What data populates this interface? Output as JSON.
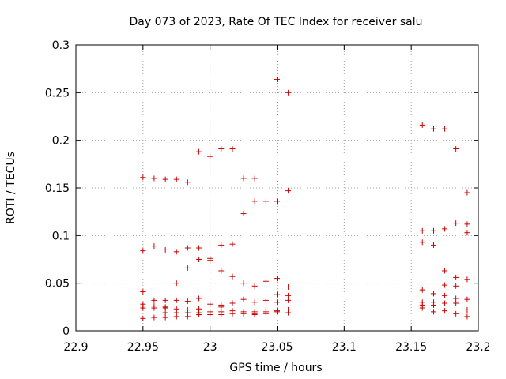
{
  "chart_data": {
    "type": "scatter",
    "title": "Day 073 of 2023, Rate Of TEC Index for receiver salu",
    "xlabel": "GPS time / hours",
    "ylabel": "ROTI / TECUs",
    "xlim": [
      22.9,
      23.2
    ],
    "ylim": [
      0,
      0.3
    ],
    "x_ticks": [
      22.9,
      22.95,
      23.0,
      23.05,
      23.1,
      23.15,
      23.2
    ],
    "x_tick_labels": [
      "22.9",
      "22.95",
      "23",
      "23.05",
      "23.1",
      "23.15",
      "23.2"
    ],
    "y_ticks": [
      0,
      0.05,
      0.1,
      0.15,
      0.2,
      0.25,
      0.3
    ],
    "y_tick_labels": [
      "0",
      "0.05",
      "0.1",
      "0.15",
      "0.2",
      "0.25",
      "0.3"
    ],
    "grid": true,
    "marker": "plus",
    "marker_color": "#cc0000",
    "points": [
      [
        22.95,
        0.161
      ],
      [
        22.95,
        0.084
      ],
      [
        22.95,
        0.041
      ],
      [
        22.95,
        0.028
      ],
      [
        22.95,
        0.026
      ],
      [
        22.95,
        0.024
      ],
      [
        22.95,
        0.013
      ],
      [
        22.9583,
        0.16
      ],
      [
        22.9583,
        0.089
      ],
      [
        22.9583,
        0.032
      ],
      [
        22.9583,
        0.026
      ],
      [
        22.9583,
        0.024
      ],
      [
        22.9583,
        0.014
      ],
      [
        22.9667,
        0.159
      ],
      [
        22.9667,
        0.085
      ],
      [
        22.9667,
        0.032
      ],
      [
        22.9667,
        0.025
      ],
      [
        22.9667,
        0.024
      ],
      [
        22.9667,
        0.019
      ],
      [
        22.9667,
        0.014
      ],
      [
        22.975,
        0.159
      ],
      [
        22.975,
        0.083
      ],
      [
        22.975,
        0.05
      ],
      [
        22.975,
        0.032
      ],
      [
        22.975,
        0.023
      ],
      [
        22.975,
        0.019
      ],
      [
        22.975,
        0.015
      ],
      [
        22.9833,
        0.156
      ],
      [
        22.9833,
        0.087
      ],
      [
        22.9833,
        0.066
      ],
      [
        22.9833,
        0.031
      ],
      [
        22.9833,
        0.022
      ],
      [
        22.9833,
        0.019
      ],
      [
        22.9833,
        0.015
      ],
      [
        22.9917,
        0.188
      ],
      [
        22.9917,
        0.087
      ],
      [
        22.9917,
        0.075
      ],
      [
        22.9917,
        0.034
      ],
      [
        22.9917,
        0.023
      ],
      [
        22.9917,
        0.019
      ],
      [
        22.9917,
        0.017
      ],
      [
        23.0,
        0.183
      ],
      [
        23.0,
        0.076
      ],
      [
        23.0,
        0.074
      ],
      [
        23.0,
        0.028
      ],
      [
        23.0,
        0.02
      ],
      [
        23.0,
        0.017
      ],
      [
        23.0083,
        0.191
      ],
      [
        23.0083,
        0.09
      ],
      [
        23.0083,
        0.063
      ],
      [
        23.0083,
        0.027
      ],
      [
        23.0083,
        0.025
      ],
      [
        23.0083,
        0.02
      ],
      [
        23.0083,
        0.017
      ],
      [
        23.0167,
        0.191
      ],
      [
        23.0167,
        0.091
      ],
      [
        23.0167,
        0.057
      ],
      [
        23.0167,
        0.029
      ],
      [
        23.0167,
        0.021
      ],
      [
        23.0167,
        0.018
      ],
      [
        23.025,
        0.16
      ],
      [
        23.025,
        0.123
      ],
      [
        23.025,
        0.05
      ],
      [
        23.025,
        0.033
      ],
      [
        23.025,
        0.02
      ],
      [
        23.025,
        0.018
      ],
      [
        23.0333,
        0.16
      ],
      [
        23.0333,
        0.136
      ],
      [
        23.0333,
        0.047
      ],
      [
        23.0333,
        0.03
      ],
      [
        23.0333,
        0.02
      ],
      [
        23.0333,
        0.018
      ],
      [
        23.0333,
        0.017
      ],
      [
        23.0417,
        0.136
      ],
      [
        23.0417,
        0.052
      ],
      [
        23.0417,
        0.032
      ],
      [
        23.0417,
        0.022
      ],
      [
        23.0417,
        0.02
      ],
      [
        23.0417,
        0.018
      ],
      [
        23.05,
        0.264
      ],
      [
        23.05,
        0.136
      ],
      [
        23.05,
        0.055
      ],
      [
        23.05,
        0.038
      ],
      [
        23.05,
        0.03
      ],
      [
        23.05,
        0.021
      ],
      [
        23.05,
        0.02
      ],
      [
        23.0583,
        0.25
      ],
      [
        23.0583,
        0.147
      ],
      [
        23.0583,
        0.046
      ],
      [
        23.0583,
        0.037
      ],
      [
        23.0583,
        0.032
      ],
      [
        23.0583,
        0.022
      ],
      [
        23.0583,
        0.019
      ],
      [
        23.1583,
        0.216
      ],
      [
        23.1583,
        0.105
      ],
      [
        23.1583,
        0.093
      ],
      [
        23.1583,
        0.043
      ],
      [
        23.1583,
        0.03
      ],
      [
        23.1583,
        0.027
      ],
      [
        23.1583,
        0.024
      ],
      [
        23.1667,
        0.212
      ],
      [
        23.1667,
        0.105
      ],
      [
        23.1667,
        0.09
      ],
      [
        23.1667,
        0.039
      ],
      [
        23.1667,
        0.03
      ],
      [
        23.1667,
        0.027
      ],
      [
        23.1667,
        0.02
      ],
      [
        23.175,
        0.212
      ],
      [
        23.175,
        0.107
      ],
      [
        23.175,
        0.063
      ],
      [
        23.175,
        0.048
      ],
      [
        23.175,
        0.037
      ],
      [
        23.175,
        0.029
      ],
      [
        23.175,
        0.021
      ],
      [
        23.1833,
        0.191
      ],
      [
        23.1833,
        0.113
      ],
      [
        23.1833,
        0.056
      ],
      [
        23.1833,
        0.047
      ],
      [
        23.1833,
        0.034
      ],
      [
        23.1833,
        0.029
      ],
      [
        23.1833,
        0.018
      ],
      [
        23.1917,
        0.145
      ],
      [
        23.1917,
        0.112
      ],
      [
        23.1917,
        0.103
      ],
      [
        23.1917,
        0.054
      ],
      [
        23.1917,
        0.033
      ],
      [
        23.1917,
        0.022
      ],
      [
        23.1917,
        0.015
      ]
    ]
  }
}
